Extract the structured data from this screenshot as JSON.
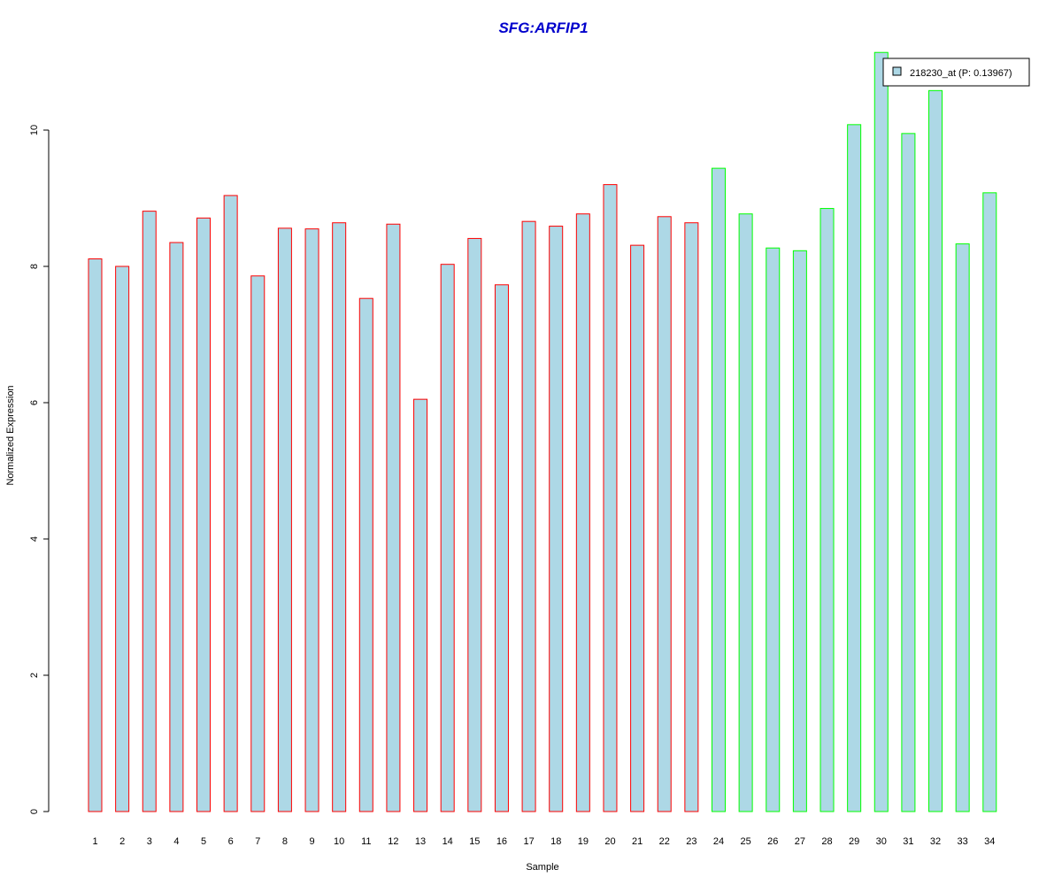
{
  "chart_data": {
    "type": "bar",
    "title": "SFG:ARFIP1",
    "xlabel": "Sample",
    "ylabel": "Normalized Expression",
    "categories": [
      "1",
      "2",
      "3",
      "4",
      "5",
      "6",
      "7",
      "8",
      "9",
      "10",
      "11",
      "12",
      "13",
      "14",
      "15",
      "16",
      "17",
      "18",
      "19",
      "20",
      "21",
      "22",
      "23",
      "24",
      "25",
      "26",
      "27",
      "28",
      "29",
      "30",
      "31",
      "32",
      "33",
      "34"
    ],
    "series": [
      {
        "name": "218230_at (P: 0.13967)",
        "values": [
          8.11,
          8.0,
          8.81,
          8.35,
          8.71,
          9.04,
          7.86,
          8.56,
          8.55,
          8.64,
          7.53,
          8.62,
          6.05,
          8.03,
          8.41,
          7.73,
          8.66,
          8.59,
          8.77,
          9.2,
          8.31,
          8.73,
          8.64,
          9.44,
          8.77,
          8.27,
          8.23,
          8.85,
          10.08,
          11.14,
          9.95,
          10.58,
          8.33,
          9.08
        ]
      }
    ],
    "groups": [
      {
        "samples": "1-23",
        "border_color": "#ff0000"
      },
      {
        "samples": "24-34",
        "border_color": "#00ff00"
      }
    ],
    "bar_fill": "#add8e6",
    "title_color": "#0000cc",
    "yticks": [
      0,
      2,
      4,
      6,
      8,
      10
    ],
    "ylim": [
      0,
      11.14
    ],
    "legend_position": "top-right",
    "grid": false
  }
}
